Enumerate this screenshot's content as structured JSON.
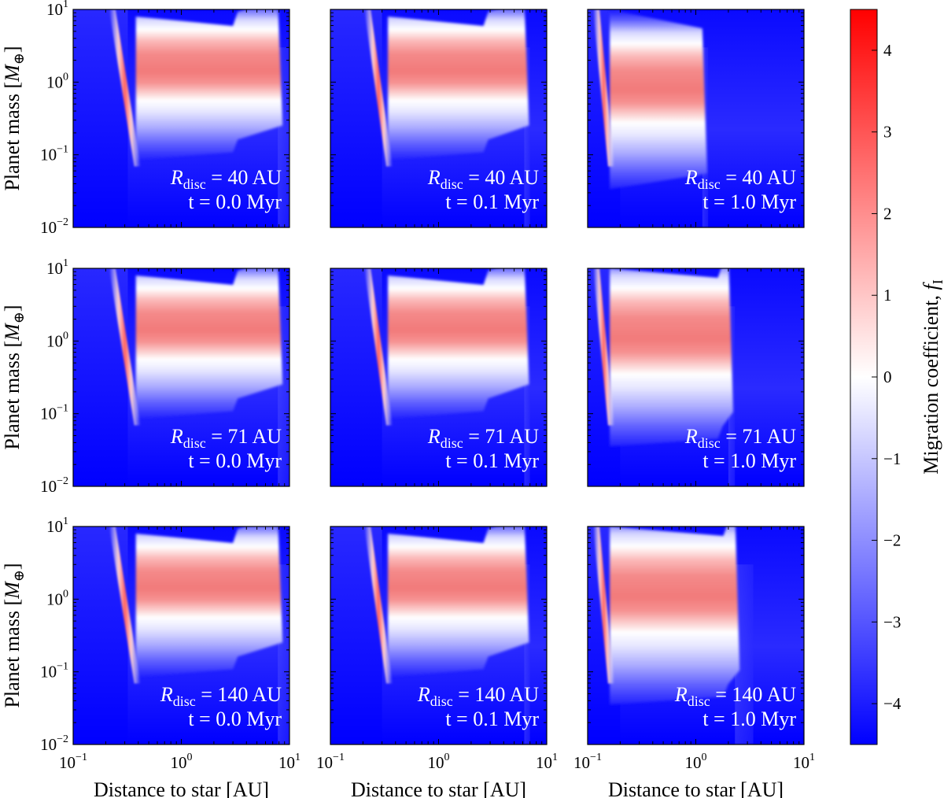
{
  "chart_data": {
    "type": "heatmap",
    "grid_layout": "3x3 panels, shared log axes",
    "xlabel": "Distance to star [AU]",
    "ylabel": "Planet mass [M⊕]",
    "x_range_au": [
      0.1,
      10
    ],
    "y_range_mearth": [
      0.01,
      10
    ],
    "x_ticks": [
      {
        "base": "10",
        "exp": "−1",
        "value": 0.1
      },
      {
        "base": "10",
        "exp": "0",
        "value": 1
      },
      {
        "base": "10",
        "exp": "1",
        "value": 10
      }
    ],
    "y_ticks": [
      {
        "base": "10",
        "exp": "−2",
        "value": 0.01
      },
      {
        "base": "10",
        "exp": "−1",
        "value": 0.1
      },
      {
        "base": "10",
        "exp": "0",
        "value": 1
      },
      {
        "base": "10",
        "exp": "1",
        "value": 10
      }
    ],
    "colorbar": {
      "label": "Migration coefficient, f",
      "label_sub": "I",
      "range": [
        -4.5,
        4.5
      ],
      "ticks": [
        4,
        3,
        2,
        1,
        0,
        -1,
        -2,
        -3,
        -4
      ],
      "tick_labels": [
        "4",
        "3",
        "2",
        "1",
        "0",
        "−1",
        "−2",
        "−3",
        "−4"
      ],
      "colormap": "bwr",
      "colors": {
        "low": "#0000ff",
        "mid": "#ffffff",
        "high": "#ff0000"
      }
    },
    "panels": [
      {
        "row": 0,
        "col": 0,
        "rdisc": 40,
        "t": 0.0,
        "label_r": "R",
        "label_sub": "disc",
        "label_val": " = 40 AU",
        "label_t": "t = 0.0 Myr",
        "inner_edge_au": 0.32,
        "zone_start_au": 0.38,
        "zone_end_au": 7.8,
        "break_au": 3.0,
        "outer_fade_au": 10
      },
      {
        "row": 0,
        "col": 1,
        "rdisc": 40,
        "t": 0.1,
        "label_r": "R",
        "label_sub": "disc",
        "label_val": " = 40 AU",
        "label_t": "t = 0.1 Myr",
        "inner_edge_au": 0.3,
        "zone_start_au": 0.34,
        "zone_end_au": 6.2,
        "break_au": 2.6,
        "outer_fade_au": 7
      },
      {
        "row": 0,
        "col": 2,
        "rdisc": 40,
        "t": 1.0,
        "label_r": "R",
        "label_sub": "disc",
        "label_val": " = 40 AU",
        "label_t": "t = 1.0 Myr",
        "inner_edge_au": 0.2,
        "zone_start_au": 0.16,
        "zone_end_au": 1.15,
        "break_au": 0,
        "outer_fade_au": 1.3
      },
      {
        "row": 1,
        "col": 0,
        "rdisc": 71,
        "t": 0.0,
        "label_r": "R",
        "label_sub": "disc",
        "label_val": " = 71 AU",
        "label_t": "t = 0.0 Myr",
        "inner_edge_au": 0.32,
        "zone_start_au": 0.38,
        "zone_end_au": 7.8,
        "break_au": 3.0,
        "outer_fade_au": 10
      },
      {
        "row": 1,
        "col": 1,
        "rdisc": 71,
        "t": 0.1,
        "label_r": "R",
        "label_sub": "disc",
        "label_val": " = 71 AU",
        "label_t": "t = 0.1 Myr",
        "inner_edge_au": 0.3,
        "zone_start_au": 0.34,
        "zone_end_au": 6.2,
        "break_au": 2.6,
        "outer_fade_au": 7
      },
      {
        "row": 1,
        "col": 2,
        "rdisc": 71,
        "t": 1.0,
        "label_r": "R",
        "label_sub": "disc",
        "label_val": " = 71 AU",
        "label_t": "t = 1.0 Myr",
        "inner_edge_au": 0.2,
        "zone_start_au": 0.16,
        "zone_end_au": 2.0,
        "break_au": 1.6,
        "outer_fade_au": 2.3
      },
      {
        "row": 2,
        "col": 0,
        "rdisc": 140,
        "t": 0.0,
        "label_r": "R",
        "label_sub": "disc",
        "label_val": " = 140 AU",
        "label_t": "t = 0.0 Myr",
        "inner_edge_au": 0.32,
        "zone_start_au": 0.38,
        "zone_end_au": 7.8,
        "break_au": 3.0,
        "outer_fade_au": 10
      },
      {
        "row": 2,
        "col": 1,
        "rdisc": 140,
        "t": 0.1,
        "label_r": "R",
        "label_sub": "disc",
        "label_val": " = 140 AU",
        "label_t": "t = 0.1 Myr",
        "inner_edge_au": 0.3,
        "zone_start_au": 0.34,
        "zone_end_au": 6.2,
        "break_au": 2.6,
        "outer_fade_au": 7
      },
      {
        "row": 2,
        "col": 2,
        "rdisc": 140,
        "t": 1.0,
        "label_r": "R",
        "label_sub": "disc",
        "label_val": " = 140 AU",
        "label_t": "t = 1.0 Myr",
        "inner_edge_au": 0.2,
        "zone_start_au": 0.16,
        "zone_end_au": 2.3,
        "break_au": 1.8,
        "outer_fade_au": 3.4
      }
    ]
  }
}
